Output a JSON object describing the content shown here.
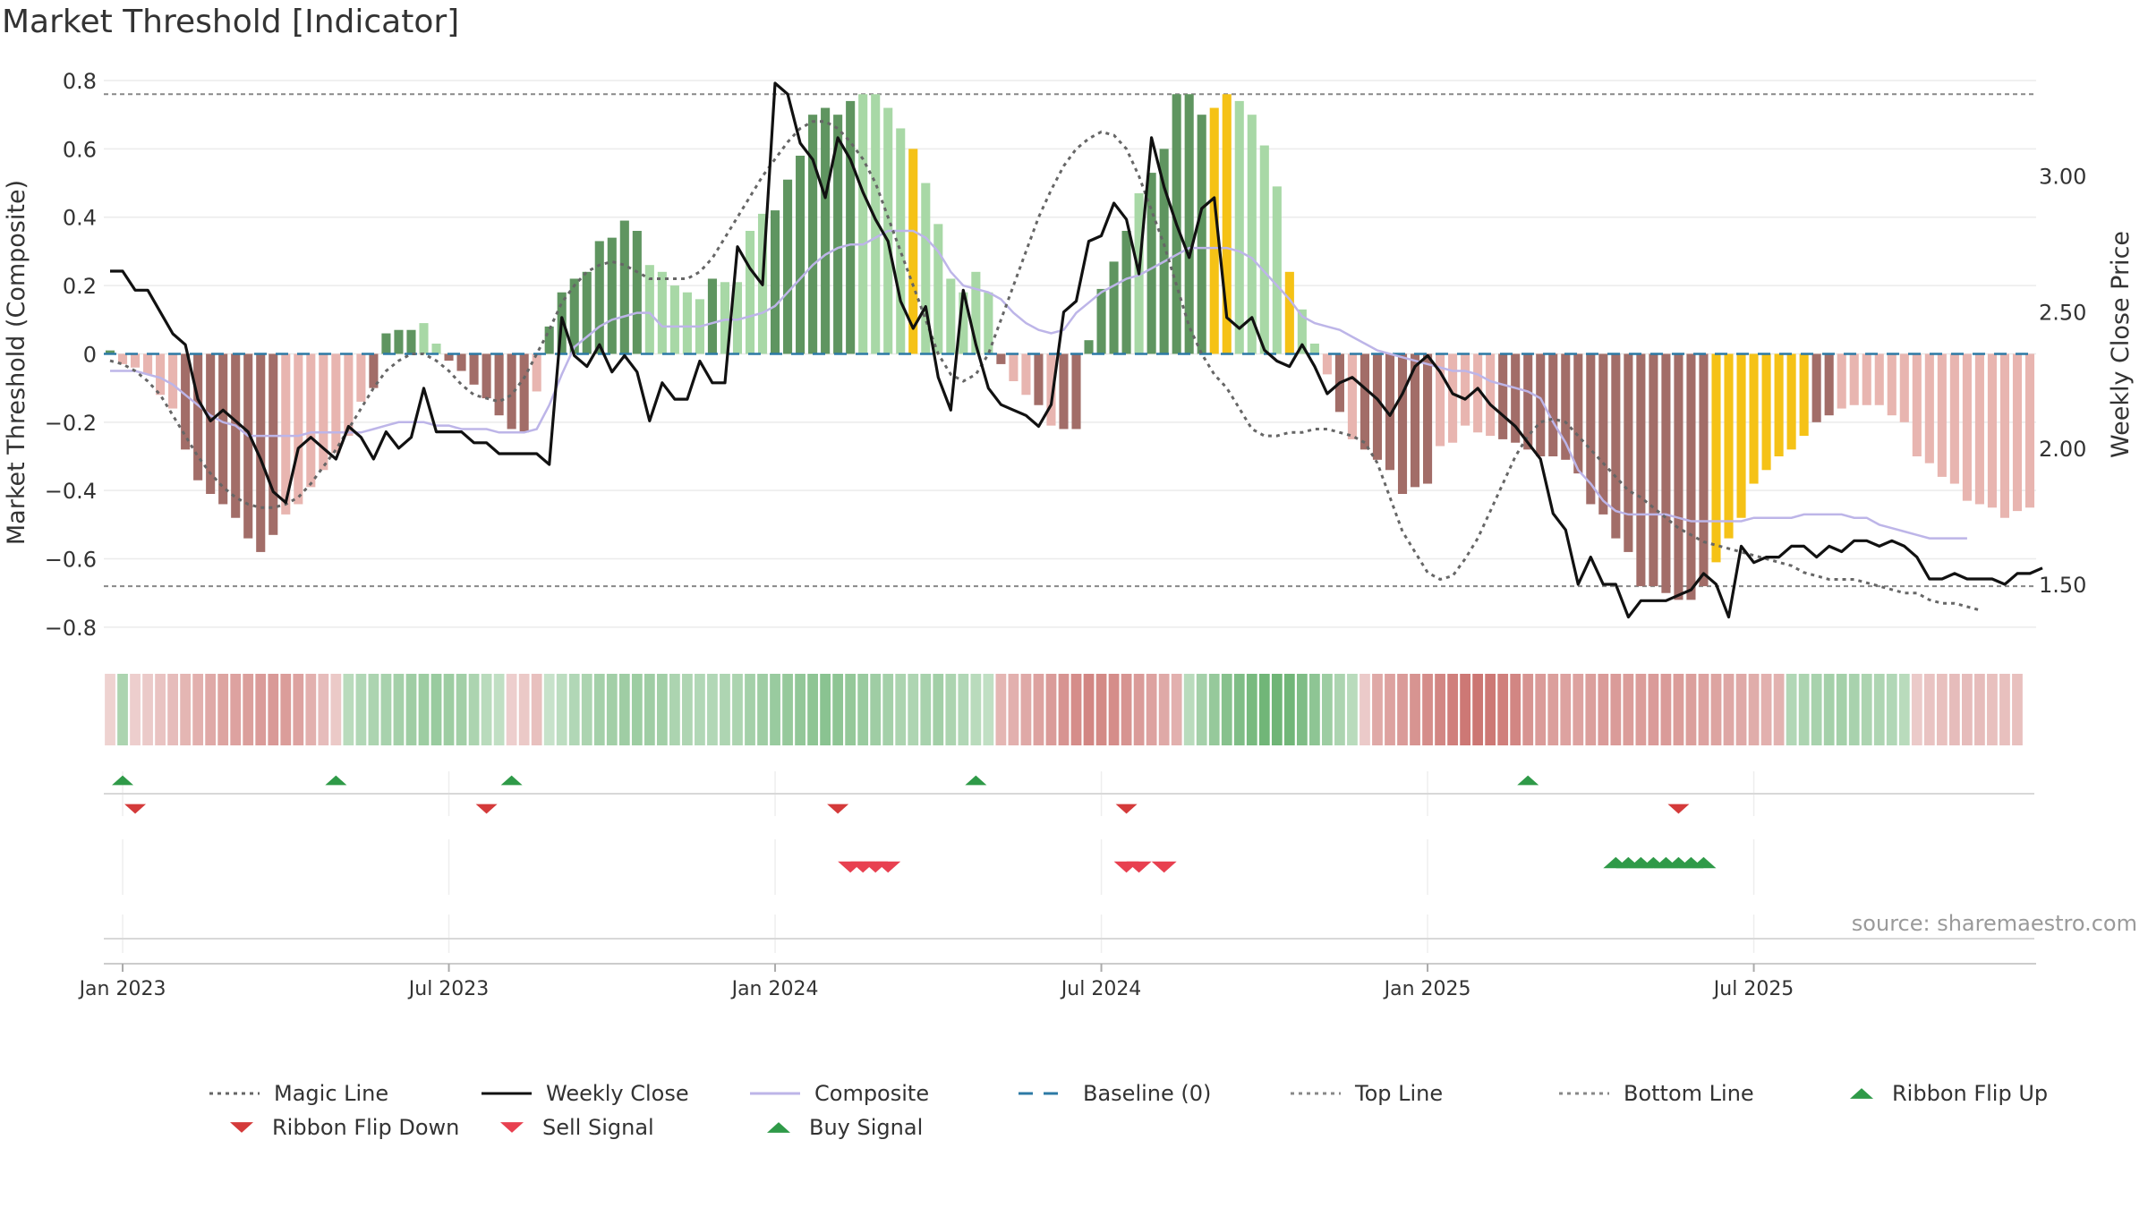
{
  "title": "Market Threshold [Indicator]",
  "source": "source: sharemaestro.com",
  "chart_data": {
    "type": "bar",
    "title": "Market Threshold [Indicator]",
    "ylabel": "Market Threshold (Composite)",
    "y2label": "Weekly Close Price",
    "ylim": [
      -0.85,
      0.8
    ],
    "y2lim": [
      1.28,
      3.35
    ],
    "yticks": [
      "0.8",
      "0.6",
      "0.4",
      "0.2",
      "0",
      "−0.2",
      "−0.4",
      "−0.6",
      "−0.8"
    ],
    "yticks_values": [
      0.8,
      0.6,
      0.4,
      0.2,
      0,
      -0.2,
      -0.4,
      -0.6,
      -0.8
    ],
    "y2ticks": [
      "3.00",
      "2.50",
      "2.00",
      "1.50"
    ],
    "y2ticks_values": [
      3.0,
      2.5,
      2.0,
      1.5
    ],
    "x_start": "2022-12-26",
    "x_end": "2025-09-22",
    "xticks": [
      "Jan 2023",
      "Jul 2023",
      "Jan 2024",
      "Jul 2024",
      "Jan 2025",
      "Jul 2025"
    ],
    "xticks_weeks": [
      1,
      27,
      53,
      79,
      105,
      131
    ],
    "top_line": 0.76,
    "bottom_line": -0.68,
    "baseline": 0,
    "colors": {
      "pos_dark": "#5f9560",
      "pos_light": "#a8d8a6",
      "neg_dark": "#a26d68",
      "neg_light": "#e8b5b0",
      "extreme": "#f5c216",
      "weekly_close": "#111111",
      "magic_line": "#666666",
      "composite": "#bdb5e8",
      "baseline": "#2d7aa5",
      "threshold_lines": "#888888",
      "marker_up": "#2f9a48",
      "marker_down": "#d43a3a",
      "sell": "#e84050"
    },
    "bars": [
      0.01,
      -0.03,
      -0.04,
      -0.06,
      -0.12,
      -0.16,
      -0.28,
      -0.37,
      -0.41,
      -0.44,
      -0.48,
      -0.54,
      -0.58,
      -0.53,
      -0.47,
      -0.44,
      -0.39,
      -0.34,
      -0.29,
      -0.24,
      -0.14,
      -0.1,
      0.06,
      0.07,
      0.07,
      0.09,
      0.03,
      -0.02,
      -0.05,
      -0.09,
      -0.13,
      -0.18,
      -0.22,
      -0.23,
      -0.11,
      0.08,
      0.18,
      0.22,
      0.24,
      0.33,
      0.34,
      0.39,
      0.36,
      0.26,
      0.24,
      0.2,
      0.18,
      0.16,
      0.22,
      0.21,
      0.21,
      0.36,
      0.41,
      0.42,
      0.51,
      0.58,
      0.7,
      0.72,
      0.7,
      0.74,
      0.76,
      0.76,
      0.72,
      0.66,
      0.6,
      0.5,
      0.38,
      0.22,
      0.18,
      0.24,
      0.18,
      -0.03,
      -0.08,
      -0.12,
      -0.15,
      -0.21,
      -0.22,
      -0.22,
      0.04,
      0.19,
      0.27,
      0.36,
      0.47,
      0.53,
      0.6,
      0.76,
      0.76,
      0.7,
      0.72,
      0.76,
      0.74,
      0.7,
      0.61,
      0.49,
      0.24,
      0.13,
      0.03,
      -0.06,
      -0.17,
      -0.25,
      -0.28,
      -0.31,
      -0.34,
      -0.41,
      -0.39,
      -0.38,
      -0.27,
      -0.26,
      -0.21,
      -0.23,
      -0.24,
      -0.25,
      -0.26,
      -0.28,
      -0.3,
      -0.3,
      -0.31,
      -0.35,
      -0.44,
      -0.47,
      -0.54,
      -0.58,
      -0.68,
      -0.68,
      -0.7,
      -0.72,
      -0.72,
      -0.68,
      -0.61,
      -0.54,
      -0.48,
      -0.38,
      -0.34,
      -0.3,
      -0.28,
      -0.24,
      -0.2,
      -0.18,
      -0.16,
      -0.15,
      -0.15,
      -0.15,
      -0.18,
      -0.2,
      -0.3,
      -0.32,
      -0.36,
      -0.38,
      -0.43,
      -0.44,
      -0.45,
      -0.48,
      -0.46,
      -0.45
    ],
    "bar_styles": "dlllllddddddddlllllllddddlldddddddlddddddddllllldlllldddddddllllxlllllldlldlddddddldddddxxllllxllldlddddddllllldddddddddddddddddxxxxxxxxddllllllllllllllllllldddddddlll",
    "weekly_close": [
      2.65,
      2.65,
      2.58,
      2.58,
      2.5,
      2.42,
      2.38,
      2.18,
      2.1,
      2.14,
      2.1,
      2.06,
      1.96,
      1.84,
      1.8,
      2.0,
      2.04,
      2.0,
      1.96,
      2.08,
      2.04,
      1.96,
      2.06,
      2.0,
      2.04,
      2.22,
      2.06,
      2.06,
      2.06,
      2.02,
      2.02,
      1.98,
      1.98,
      1.98,
      1.98,
      1.94,
      2.48,
      2.34,
      2.3,
      2.38,
      2.28,
      2.34,
      2.28,
      2.1,
      2.24,
      2.18,
      2.18,
      2.32,
      2.24,
      2.24,
      2.74,
      2.66,
      2.6,
      3.34,
      3.3,
      3.12,
      3.06,
      2.92,
      3.14,
      3.06,
      2.94,
      2.84,
      2.76,
      2.54,
      2.44,
      2.52,
      2.26,
      2.14,
      2.58,
      2.38,
      2.22,
      2.16,
      2.14,
      2.12,
      2.08,
      2.16,
      2.5,
      2.54,
      2.76,
      2.78,
      2.9,
      2.84,
      2.64,
      3.14,
      2.96,
      2.82,
      2.7,
      2.88,
      2.92,
      2.48,
      2.44,
      2.48,
      2.36,
      2.32,
      2.3,
      2.38,
      2.3,
      2.2,
      2.24,
      2.26,
      2.22,
      2.18,
      2.12,
      2.2,
      2.3,
      2.34,
      2.28,
      2.2,
      2.18,
      2.22,
      2.16,
      2.12,
      2.08,
      2.02,
      1.96,
      1.76,
      1.7,
      1.5,
      1.6,
      1.5,
      1.5,
      1.38,
      1.44,
      1.44,
      1.44,
      1.46,
      1.48,
      1.54,
      1.5,
      1.38,
      1.64,
      1.58,
      1.6,
      1.6,
      1.64,
      1.64,
      1.6,
      1.64,
      1.62,
      1.66,
      1.66,
      1.64,
      1.66,
      1.64,
      1.6,
      1.52,
      1.52,
      1.54,
      1.52,
      1.52,
      1.52,
      1.5,
      1.54,
      1.54,
      1.56
    ],
    "composite": [
      -0.05,
      -0.05,
      -0.05,
      -0.06,
      -0.07,
      -0.09,
      -0.12,
      -0.15,
      -0.18,
      -0.2,
      -0.21,
      -0.24,
      -0.24,
      -0.24,
      -0.24,
      -0.24,
      -0.23,
      -0.23,
      -0.23,
      -0.23,
      -0.23,
      -0.22,
      -0.21,
      -0.2,
      -0.2,
      -0.2,
      -0.21,
      -0.21,
      -0.22,
      -0.22,
      -0.22,
      -0.23,
      -0.23,
      -0.23,
      -0.22,
      -0.15,
      -0.06,
      0.02,
      0.05,
      0.08,
      0.1,
      0.11,
      0.12,
      0.12,
      0.08,
      0.08,
      0.08,
      0.08,
      0.09,
      0.1,
      0.1,
      0.11,
      0.12,
      0.14,
      0.18,
      0.22,
      0.26,
      0.29,
      0.31,
      0.32,
      0.32,
      0.34,
      0.36,
      0.36,
      0.36,
      0.34,
      0.3,
      0.24,
      0.2,
      0.19,
      0.18,
      0.16,
      0.12,
      0.09,
      0.07,
      0.06,
      0.07,
      0.12,
      0.15,
      0.18,
      0.2,
      0.22,
      0.23,
      0.25,
      0.27,
      0.29,
      0.31,
      0.31,
      0.31,
      0.31,
      0.3,
      0.28,
      0.24,
      0.2,
      0.16,
      0.11,
      0.09,
      0.08,
      0.07,
      0.05,
      0.03,
      0.01,
      0.0,
      -0.01,
      -0.02,
      -0.03,
      -0.04,
      -0.05,
      -0.05,
      -0.06,
      -0.08,
      -0.09,
      -0.1,
      -0.11,
      -0.13,
      -0.2,
      -0.26,
      -0.34,
      -0.38,
      -0.43,
      -0.46,
      -0.47,
      -0.47,
      -0.47,
      -0.47,
      -0.48,
      -0.49,
      -0.49,
      -0.49,
      -0.49,
      -0.49,
      -0.48,
      -0.48,
      -0.48,
      -0.48,
      -0.47,
      -0.47,
      -0.47,
      -0.47,
      -0.48,
      -0.48,
      -0.5,
      -0.51,
      -0.52,
      -0.53,
      -0.54,
      -0.54,
      -0.54,
      -0.54
    ],
    "magic_line": [
      -0.02,
      -0.03,
      -0.05,
      -0.08,
      -0.12,
      -0.18,
      -0.24,
      -0.3,
      -0.35,
      -0.39,
      -0.42,
      -0.44,
      -0.45,
      -0.45,
      -0.44,
      -0.42,
      -0.38,
      -0.33,
      -0.28,
      -0.22,
      -0.16,
      -0.1,
      -0.05,
      -0.02,
      0.0,
      0.0,
      -0.02,
      -0.05,
      -0.09,
      -0.12,
      -0.13,
      -0.14,
      -0.12,
      -0.07,
      0.0,
      0.07,
      0.15,
      0.2,
      0.24,
      0.26,
      0.27,
      0.26,
      0.24,
      0.22,
      0.22,
      0.22,
      0.22,
      0.24,
      0.28,
      0.34,
      0.4,
      0.46,
      0.52,
      0.57,
      0.62,
      0.66,
      0.68,
      0.68,
      0.66,
      0.62,
      0.57,
      0.5,
      0.4,
      0.3,
      0.2,
      0.1,
      0.0,
      -0.06,
      -0.08,
      -0.06,
      0.0,
      0.1,
      0.2,
      0.3,
      0.4,
      0.48,
      0.55,
      0.6,
      0.63,
      0.65,
      0.64,
      0.6,
      0.52,
      0.42,
      0.32,
      0.2,
      0.08,
      0.0,
      -0.06,
      -0.1,
      -0.16,
      -0.22,
      -0.24,
      -0.24,
      -0.23,
      -0.23,
      -0.22,
      -0.22,
      -0.23,
      -0.24,
      -0.26,
      -0.32,
      -0.42,
      -0.52,
      -0.58,
      -0.64,
      -0.66,
      -0.65,
      -0.6,
      -0.54,
      -0.46,
      -0.38,
      -0.3,
      -0.24,
      -0.2,
      -0.19,
      -0.2,
      -0.24,
      -0.28,
      -0.32,
      -0.36,
      -0.4,
      -0.42,
      -0.45,
      -0.48,
      -0.51,
      -0.53,
      -0.55,
      -0.56,
      -0.57,
      -0.58,
      -0.59,
      -0.6,
      -0.61,
      -0.62,
      -0.64,
      -0.65,
      -0.66,
      -0.66,
      -0.66,
      -0.67,
      -0.68,
      -0.69,
      -0.7,
      -0.7,
      -0.72,
      -0.73,
      -0.73,
      -0.74,
      -0.75
    ],
    "ribbon_values": [
      -0.05,
      0.3,
      -0.08,
      -0.1,
      -0.15,
      -0.2,
      -0.25,
      -0.3,
      -0.35,
      -0.38,
      -0.4,
      -0.42,
      -0.45,
      -0.46,
      -0.44,
      -0.4,
      -0.3,
      -0.2,
      -0.12,
      0.2,
      0.25,
      0.3,
      0.32,
      0.35,
      0.38,
      0.4,
      0.42,
      0.4,
      0.36,
      0.3,
      0.2,
      0.15,
      -0.08,
      -0.12,
      -0.18,
      0.1,
      0.18,
      0.25,
      0.3,
      0.34,
      0.36,
      0.38,
      0.4,
      0.38,
      0.36,
      0.3,
      0.28,
      0.25,
      0.25,
      0.28,
      0.3,
      0.34,
      0.38,
      0.42,
      0.45,
      0.48,
      0.5,
      0.52,
      0.5,
      0.46,
      0.42,
      0.38,
      0.34,
      0.3,
      0.28,
      0.32,
      0.36,
      0.3,
      0.25,
      0.2,
      0.15,
      -0.25,
      -0.3,
      -0.35,
      -0.4,
      -0.45,
      -0.5,
      -0.55,
      -0.6,
      -0.58,
      -0.55,
      -0.5,
      -0.45,
      -0.4,
      -0.35,
      -0.3,
      0.2,
      0.35,
      0.45,
      0.55,
      0.6,
      0.65,
      0.7,
      0.72,
      0.7,
      0.6,
      0.5,
      0.4,
      0.3,
      0.2,
      -0.1,
      -0.35,
      -0.4,
      -0.45,
      -0.5,
      -0.55,
      -0.6,
      -0.65,
      -0.7,
      -0.72,
      -0.7,
      -0.65,
      -0.6,
      -0.5,
      -0.45,
      -0.42,
      -0.4,
      -0.4,
      -0.42,
      -0.45,
      -0.45,
      -0.44,
      -0.44,
      -0.45,
      -0.45,
      -0.44,
      -0.42,
      -0.4,
      -0.38,
      -0.36,
      -0.34,
      -0.32,
      -0.3,
      -0.28,
      0.25,
      0.3,
      0.32,
      0.35,
      0.35,
      0.32,
      0.3,
      0.28,
      0.25,
      0.2,
      -0.1,
      -0.15,
      -0.18,
      -0.2,
      -0.2,
      -0.2,
      -0.18,
      -0.18,
      -0.18
    ],
    "ribbon_flip_up_weeks": [
      1,
      18,
      32,
      69,
      113
    ],
    "ribbon_flip_down_weeks": [
      2,
      30,
      58,
      81,
      125
    ],
    "sell_signal_weeks": [
      59,
      60,
      61,
      62,
      81,
      82,
      84
    ],
    "buy_signal_weeks": [
      120,
      121,
      122,
      123,
      124,
      125,
      126,
      127
    ],
    "legend": [
      {
        "label": "Magic Line",
        "symbol": "dotted",
        "color": "#666666"
      },
      {
        "label": "Weekly Close",
        "symbol": "solid",
        "color": "#111111"
      },
      {
        "label": "Composite",
        "symbol": "solid",
        "color": "#bdb5e8"
      },
      {
        "label": "Baseline (0)",
        "symbol": "dashed",
        "color": "#2d7aa5"
      },
      {
        "label": "Top Line",
        "symbol": "dotted",
        "color": "#888888"
      },
      {
        "label": "Bottom Line",
        "symbol": "dotted",
        "color": "#888888"
      },
      {
        "label": "Ribbon Flip Up",
        "symbol": "triangle-up",
        "color": "#2f9a48"
      },
      {
        "label": "Ribbon Flip Down",
        "symbol": "triangle-down",
        "color": "#d43a3a"
      },
      {
        "label": "Sell Signal",
        "symbol": "triangle-down",
        "color": "#e84050"
      },
      {
        "label": "Buy Signal",
        "symbol": "triangle-up",
        "color": "#2f9a48"
      }
    ]
  }
}
